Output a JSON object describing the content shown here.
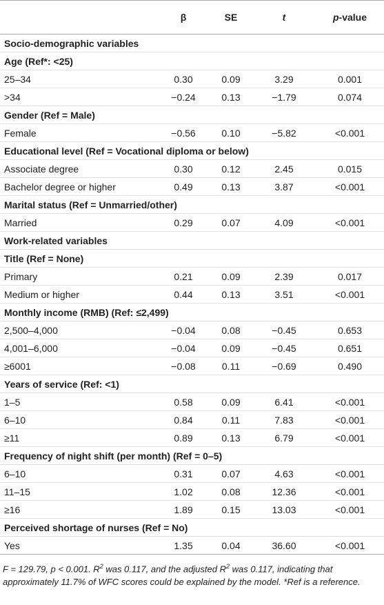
{
  "header": {
    "columns": [
      "",
      "β",
      "SE",
      "t",
      [
        "p",
        "-value"
      ]
    ]
  },
  "table": {
    "rows": [
      [
        "Socio-demographic variables"
      ],
      [
        "Age (Ref*: <25)"
      ],
      [
        "25–34",
        "0.30",
        "0.09",
        "3.29",
        "0.001"
      ],
      [
        ">34",
        "−0.24",
        "0.13",
        "−1.79",
        "0.074"
      ],
      [
        "Gender (Ref = Male)"
      ],
      [
        "Female",
        "−0.56",
        "0.10",
        "−5.82",
        "<0.001"
      ],
      [
        "Educational level (Ref = Vocational diploma or below)"
      ],
      [
        "Associate degree",
        "0.30",
        "0.12",
        "2.45",
        "0.015"
      ],
      [
        "Bachelor degree or higher",
        "0.49",
        "0.13",
        "3.87",
        "<0.001"
      ],
      [
        "Marital status (Ref = Unmarried/other)"
      ],
      [
        "Married",
        "0.29",
        "0.07",
        "4.09",
        "<0.001"
      ],
      [
        "Work-related variables"
      ],
      [
        "Title (Ref = None)"
      ],
      [
        "Primary",
        "0.21",
        "0.09",
        "2.39",
        "0.017"
      ],
      [
        "Medium or higher",
        "0.44",
        "0.13",
        "3.51",
        "<0.001"
      ],
      [
        "Monthly income (RMB) (Ref: ≤2,499)"
      ],
      [
        "2,500–4,000",
        "−0.04",
        "0.08",
        "−0.45",
        "0.653"
      ],
      [
        "4,001–6,000",
        "−0.04",
        "0.09",
        "−0.45",
        "0.651"
      ],
      [
        "≥6001",
        "−0.08",
        "0.11",
        "−0.69",
        "0.490"
      ],
      [
        "Years of service (Ref: <1)"
      ],
      [
        "1–5",
        "0.58",
        "0.09",
        "6.41",
        "<0.001"
      ],
      [
        "6–10",
        "0.84",
        "0.11",
        "7.83",
        "<0.001"
      ],
      [
        "≥11",
        "0.89",
        "0.13",
        "6.79",
        "<0.001"
      ],
      [
        "Frequency of night shift (per month) (Ref = 0–5)"
      ],
      [
        "6–10",
        "0.31",
        "0.07",
        "4.63",
        "<0.001"
      ],
      [
        "11–15",
        "1.02",
        "0.08",
        "12.36",
        "<0.001"
      ],
      [
        "≥16",
        "1.89",
        "0.15",
        "13.03",
        "<0.001"
      ],
      [
        "Perceived shortage of nurses (Ref = No)"
      ],
      [
        "Yes",
        "1.35",
        "0.04",
        "36.60",
        "<0.001"
      ]
    ]
  },
  "footnote": [
    "F = 129.79, p < 0.001. R",
    "2",
    " was 0.117, and the adjusted R",
    "2",
    " was 0.117, indicating that approximately 11.7% of WFC scores could be explained by the model. *Ref is a reference."
  ]
}
